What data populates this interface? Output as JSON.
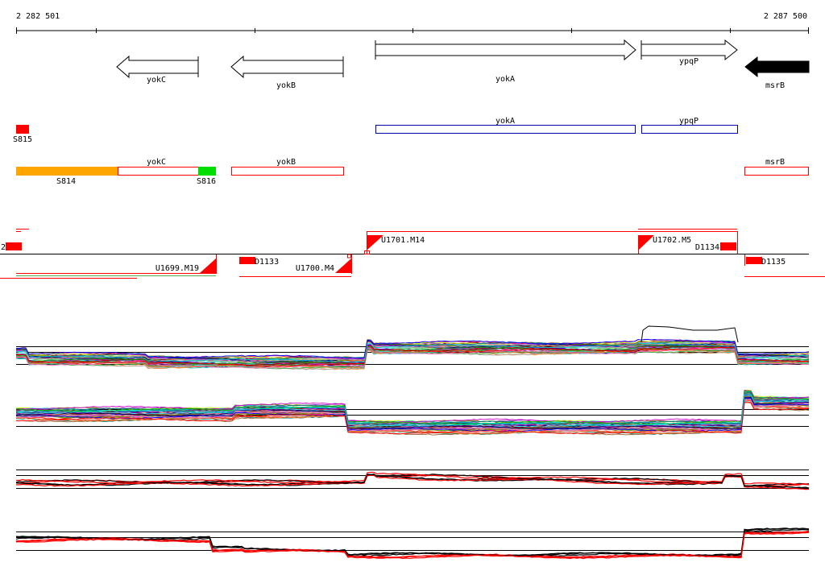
{
  "ruler": {
    "start_label": "2 282 501",
    "end_label": "2 287 500"
  },
  "genes": [
    {
      "name": "yokC",
      "strand": "-",
      "fill": "#ffffff"
    },
    {
      "name": "yokB",
      "strand": "-",
      "fill": "#ffffff"
    },
    {
      "name": "yokA",
      "strand": "+",
      "fill": "#ffffff"
    },
    {
      "name": "ypqP",
      "strand": "+",
      "fill": "#ffffff"
    },
    {
      "name": "msrB",
      "strand": "-",
      "fill": "#000000"
    }
  ],
  "blue_boxes": [
    {
      "name": "yokA"
    },
    {
      "name": "ypqP"
    }
  ],
  "segments": [
    {
      "name": "S815",
      "color": "#ff0000"
    },
    {
      "name": "S814",
      "color": "#ffa500"
    },
    {
      "name": "S816",
      "color": "#00dd00"
    },
    {
      "name": "yokC",
      "color": "#ff0000"
    },
    {
      "name": "yokB",
      "color": "#ff0000"
    },
    {
      "name": "msrB",
      "color": "#ff0000"
    }
  ],
  "features": [
    {
      "name": "U1699.M19"
    },
    {
      "name": "D1133"
    },
    {
      "name": "U1700.M4"
    },
    {
      "name": "U1701.M14"
    },
    {
      "name": "U1702.M5"
    },
    {
      "name": "D1134"
    },
    {
      "name": "D1135"
    },
    {
      "name": "2"
    }
  ],
  "colors": {
    "feature_red": "#ff0000",
    "blue_box": "#0000aa",
    "orange": "#ffa500",
    "green": "#00dd00",
    "black": "#000000"
  }
}
